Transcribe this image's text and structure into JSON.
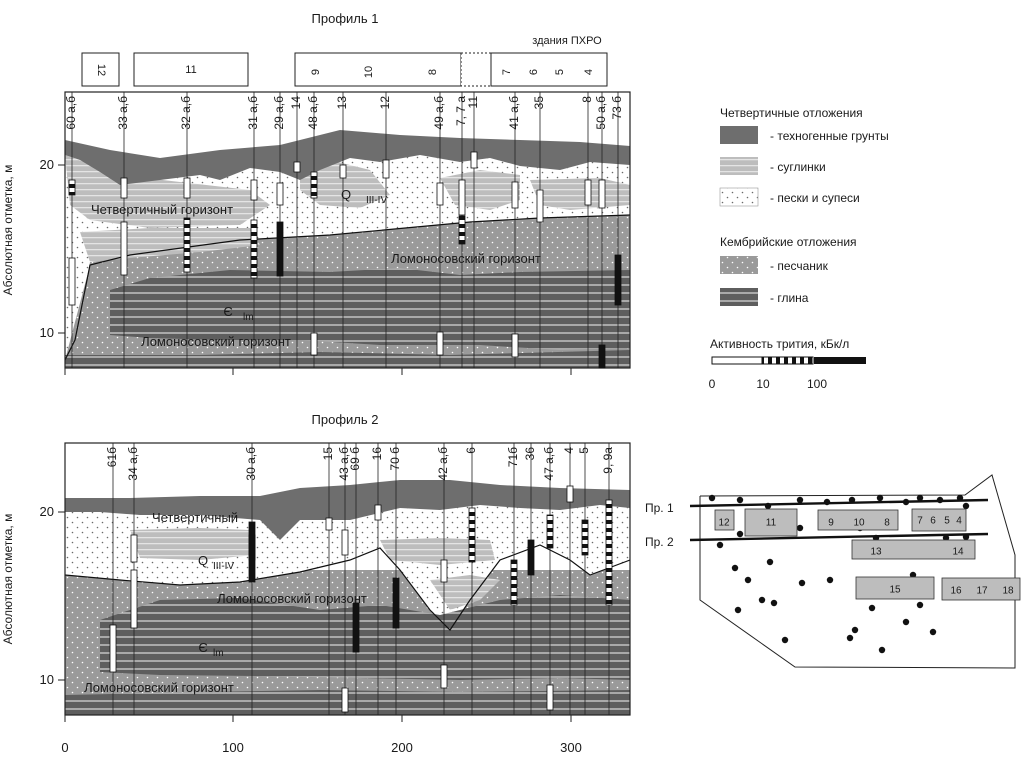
{
  "profile1": {
    "title": "Профиль 1",
    "buildings_caption": "здания ПХРО",
    "building_labels": [
      "12",
      "11",
      "9",
      "10",
      "8",
      "7",
      "6",
      "5",
      "4"
    ],
    "ylabel": "Абсолютная отметка, м",
    "y_ticks": [
      "20",
      "10"
    ],
    "layer_labels": [
      "Четвертичный горизонт",
      "Q",
      "III-IV",
      "Ломоносовский горизонт",
      "Є",
      "lm",
      "Ломоносовский горизонт"
    ],
    "wells": [
      "60 а,б",
      "33 а,б",
      "32 а,б",
      "31 а,б",
      "29 а,б",
      "14",
      "48 а,б",
      "13",
      "12",
      "49 а,б",
      "7, 7 а",
      "11",
      "41 а,б",
      "35",
      "8",
      "50 а,б",
      "73 б"
    ]
  },
  "profile2": {
    "title": "Профиль 2",
    "ylabel": "Абсолютная отметка, м",
    "y_ticks": [
      "20",
      "10"
    ],
    "x_ticks": [
      "0",
      "100",
      "200",
      "300"
    ],
    "layer_labels": [
      "Четвертичный",
      "Q",
      "III-IV",
      "Ломоносовский горизонт",
      "Є",
      "lm",
      "Ломоносовский горизонт"
    ],
    "wells": [
      "61б",
      "34 а,б",
      "30 а,б",
      "15",
      "43 а,б",
      "69 б",
      "16",
      "70 б",
      "42 а,б",
      "6",
      "71б",
      "36",
      "47 а,б",
      "4",
      "5",
      "9, 9а"
    ]
  },
  "legend": {
    "quaternary_title": "Четвертичные отложения",
    "quaternary_items": [
      "- техногенные грунты",
      "- суглинки",
      "- пески и супеси"
    ],
    "cambrian_title": "Кембрийские отложения",
    "cambrian_items": [
      "- песчаник",
      "- глина"
    ],
    "tritium_title": "Активность трития, кБк/л",
    "tritium_scale": [
      "0",
      "10",
      "100"
    ]
  },
  "map": {
    "profile_labels": [
      "Пр. 1",
      "Пр. 2"
    ],
    "buildings": [
      "12",
      "11",
      "9",
      "10",
      "8",
      "7",
      "6",
      "5",
      "4",
      "13",
      "14",
      "15",
      "16",
      "17",
      "18"
    ]
  }
}
